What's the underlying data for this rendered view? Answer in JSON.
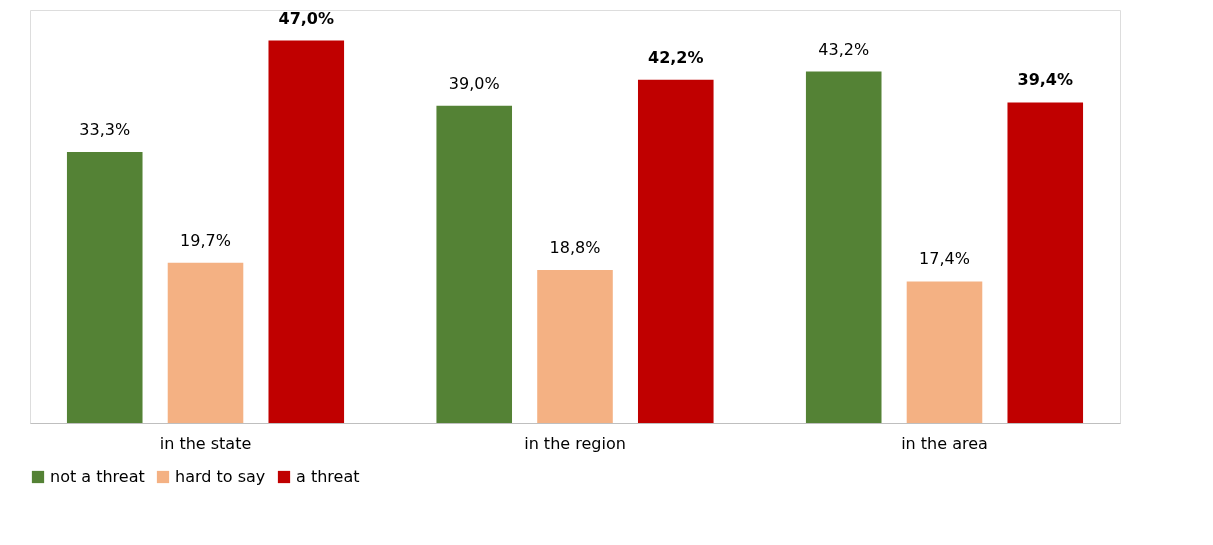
{
  "chart_data": {
    "type": "bar",
    "categories": [
      "in the state",
      "in the region",
      "in the area"
    ],
    "series": [
      {
        "name": "not a threat",
        "color": "#548235",
        "values": [
          33.3,
          39.0,
          43.2
        ],
        "value_labels": [
          "33,3%",
          "39,0%",
          "43,2%"
        ]
      },
      {
        "name": "hard to say",
        "color": "#f4b183",
        "values": [
          19.7,
          18.8,
          17.4
        ],
        "value_labels": [
          "19,7%",
          "18,8%",
          "17,4%"
        ]
      },
      {
        "name": "a threat",
        "color": "#c00000",
        "values": [
          47.0,
          42.2,
          39.4
        ],
        "value_labels": [
          "47,0%",
          "42,2%",
          "39,4%"
        ]
      }
    ],
    "legend": "bottom",
    "grid": false
  }
}
